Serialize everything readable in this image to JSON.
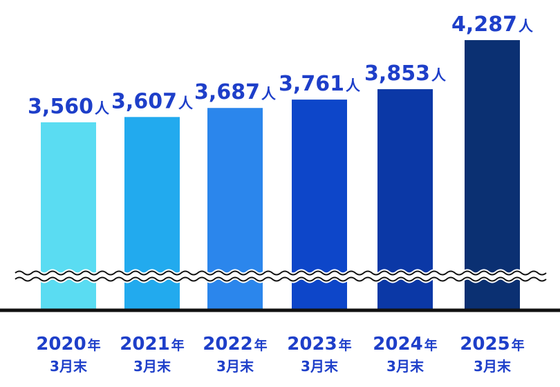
{
  "chart_data": {
    "type": "bar",
    "categories": [
      {
        "year": "2020",
        "year_unit": "年",
        "sub": "3月末"
      },
      {
        "year": "2021",
        "year_unit": "年",
        "sub": "3月末"
      },
      {
        "year": "2022",
        "year_unit": "年",
        "sub": "3月末"
      },
      {
        "year": "2023",
        "year_unit": "年",
        "sub": "3月末"
      },
      {
        "year": "2024",
        "year_unit": "年",
        "sub": "3月末"
      },
      {
        "year": "2025",
        "year_unit": "年",
        "sub": "3月末"
      }
    ],
    "values": [
      3560,
      3607,
      3687,
      3761,
      3853,
      4287
    ],
    "value_labels": [
      "3,560",
      "3,607",
      "3,687",
      "3,761",
      "3,853",
      "4,287"
    ],
    "value_unit": "人",
    "axis_break": true,
    "grid": false,
    "legend": "none",
    "colors": [
      "#5adcf2",
      "#22aaee",
      "#2b86ec",
      "#0d46c9",
      "#0b38a6",
      "#0b3072"
    ],
    "label_color": "#1e3fc9",
    "axis_color": "#111111"
  }
}
